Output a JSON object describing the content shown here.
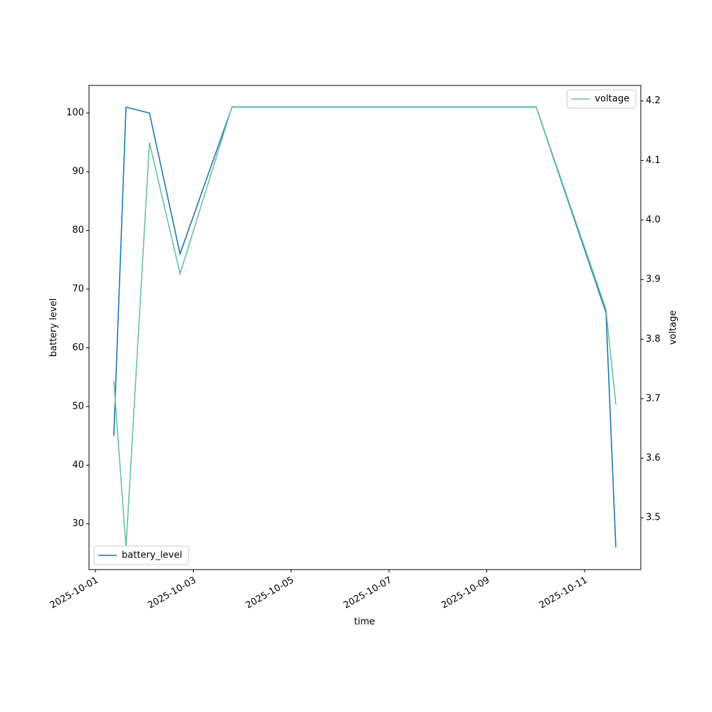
{
  "chart_data": {
    "type": "line",
    "x_label": "time",
    "y_label": "battery level",
    "y2_label": "voltage",
    "x": [
      "2025-10-01T09:00",
      "2025-10-01T15:00",
      "2025-10-02T02:30",
      "2025-10-02T17:30",
      "2025-10-03T19:00",
      "2025-10-10T00:15",
      "2025-10-11T10:30",
      "2025-10-11T15:20"
    ],
    "series": [
      {
        "name": "battery_level",
        "color": "#1f77b4",
        "values": [
          45,
          101,
          100,
          76,
          101,
          101,
          66,
          26
        ],
        "legend": "lower left"
      },
      {
        "name": "voltage",
        "color": "#66c2a5",
        "axis": "y2",
        "values": [
          3.73,
          3.45,
          4.13,
          3.91,
          4.19,
          4.19,
          3.85,
          3.69
        ],
        "legend": "upper right"
      }
    ],
    "xlim": [
      "2025-09-30T20:50",
      "2025-10-12T03:35"
    ],
    "xticks": [
      "2025-10-01",
      "2025-10-03",
      "2025-10-05",
      "2025-10-07",
      "2025-10-09",
      "2025-10-11"
    ],
    "ylim": [
      22.2,
      104.7
    ],
    "yticks": [
      30,
      40,
      50,
      60,
      70,
      80,
      90,
      100
    ],
    "y2lim": [
      3.413,
      4.226
    ],
    "y2ticks": [
      3.5,
      3.6,
      3.7,
      3.8,
      3.9,
      {
        "value": 4,
        "label": "4.0"
      },
      4.1,
      4.2
    ],
    "grid": false
  }
}
